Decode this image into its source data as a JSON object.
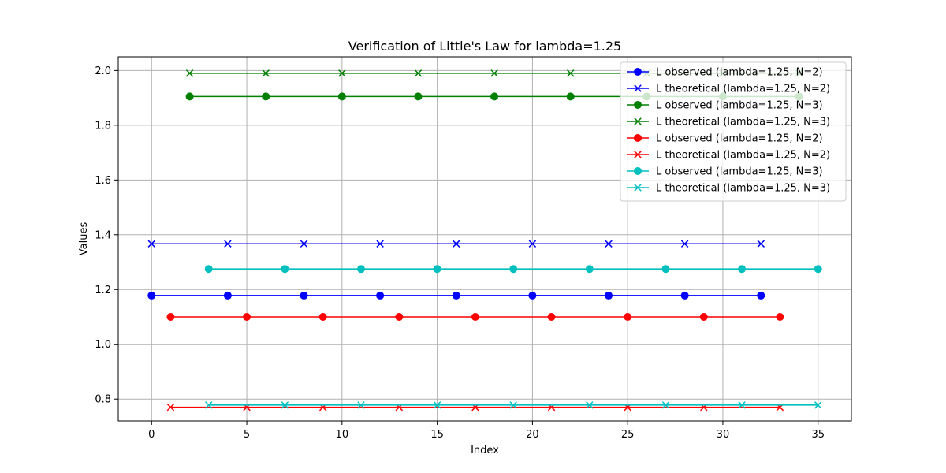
{
  "chart_data": {
    "type": "line",
    "title": "Verification of Little's Law for lambda=1.25",
    "xlabel": "Index",
    "ylabel": "Values",
    "xlim": [
      -1.75,
      36.75
    ],
    "ylim": [
      0.72,
      2.05
    ],
    "xticks": [
      0,
      5,
      10,
      15,
      20,
      25,
      30,
      35
    ],
    "yticks": [
      0.8,
      1.0,
      1.2,
      1.4,
      1.6,
      1.8,
      2.0
    ],
    "xtick_labels": [
      "0",
      "5",
      "10",
      "15",
      "20",
      "25",
      "30",
      "35"
    ],
    "ytick_labels": [
      "0.8",
      "1.0",
      "1.2",
      "1.4",
      "1.6",
      "1.8",
      "2.0"
    ],
    "grid": true,
    "legend_position": "top-right",
    "series": [
      {
        "name": "L observed (lambda=1.25, N=2)",
        "color": "#0000ff",
        "marker": "circle",
        "x": [
          0,
          4,
          8,
          12,
          16,
          20,
          24,
          28,
          32
        ],
        "y": [
          1.178,
          1.178,
          1.178,
          1.178,
          1.178,
          1.178,
          1.178,
          1.178,
          1.178
        ]
      },
      {
        "name": "L theoretical (lambda=1.25, N=2)",
        "color": "#0000ff",
        "marker": "x",
        "x": [
          0,
          4,
          8,
          12,
          16,
          20,
          24,
          28,
          32
        ],
        "y": [
          1.367,
          1.367,
          1.367,
          1.367,
          1.367,
          1.367,
          1.367,
          1.367,
          1.367
        ]
      },
      {
        "name": "L observed (lambda=1.25, N=3)",
        "color": "#008000",
        "marker": "circle",
        "x": [
          2,
          6,
          10,
          14,
          18,
          22,
          26,
          30,
          34
        ],
        "y": [
          1.905,
          1.905,
          1.905,
          1.905,
          1.905,
          1.905,
          1.905,
          1.905,
          1.905
        ]
      },
      {
        "name": "L theoretical (lambda=1.25, N=3)",
        "color": "#008000",
        "marker": "x",
        "x": [
          2,
          6,
          10,
          14,
          18,
          22,
          26,
          30,
          34
        ],
        "y": [
          1.99,
          1.99,
          1.99,
          1.99,
          1.99,
          1.99,
          1.99,
          1.99,
          1.99
        ]
      },
      {
        "name": "L observed (lambda=1.25, N=2)",
        "color": "#ff0000",
        "marker": "circle",
        "x": [
          1,
          5,
          9,
          13,
          17,
          21,
          25,
          29,
          33
        ],
        "y": [
          1.1,
          1.1,
          1.1,
          1.1,
          1.1,
          1.1,
          1.1,
          1.1,
          1.1
        ]
      },
      {
        "name": "L theoretical (lambda=1.25, N=2)",
        "color": "#ff0000",
        "marker": "x",
        "x": [
          1,
          5,
          9,
          13,
          17,
          21,
          25,
          29,
          33
        ],
        "y": [
          0.77,
          0.77,
          0.77,
          0.77,
          0.77,
          0.77,
          0.77,
          0.77,
          0.77
        ]
      },
      {
        "name": "L observed (lambda=1.25, N=3)",
        "color": "#00bfbf",
        "marker": "circle",
        "x": [
          3,
          7,
          11,
          15,
          19,
          23,
          27,
          31,
          35
        ],
        "y": [
          1.275,
          1.275,
          1.275,
          1.275,
          1.275,
          1.275,
          1.275,
          1.275,
          1.275
        ]
      },
      {
        "name": "L theoretical (lambda=1.25, N=3)",
        "color": "#00bfbf",
        "marker": "x",
        "x": [
          3,
          7,
          11,
          15,
          19,
          23,
          27,
          31,
          35
        ],
        "y": [
          0.778,
          0.778,
          0.778,
          0.778,
          0.778,
          0.778,
          0.778,
          0.778,
          0.778
        ]
      }
    ]
  }
}
